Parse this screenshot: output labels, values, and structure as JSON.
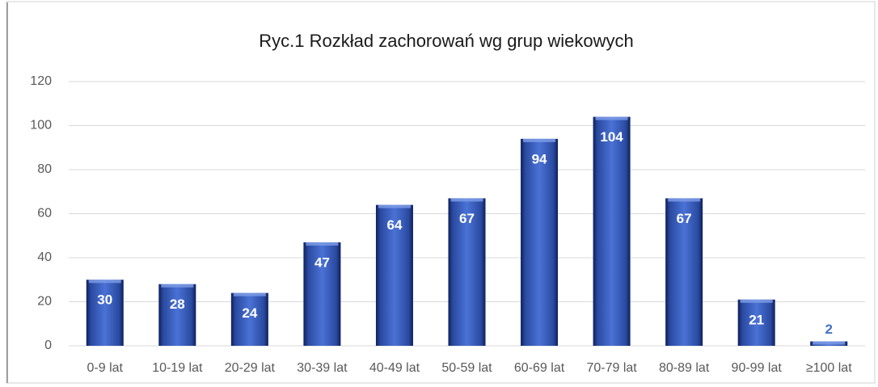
{
  "chart_data": {
    "type": "bar",
    "title": "Ryc.1 Rozkład zachorowań wg grup wiekowych",
    "categories": [
      "0-9 lat",
      "10-19 lat",
      "20-29 lat",
      "30-39 lat",
      "40-49 lat",
      "50-59 lat",
      "60-69 lat",
      "70-79 lat",
      "80-89 lat",
      "90-99 lat",
      "≥100 lat"
    ],
    "values": [
      30,
      28,
      24,
      47,
      64,
      67,
      94,
      104,
      67,
      21,
      2
    ],
    "color": "#2f4fa8",
    "ylim": [
      0,
      120
    ],
    "yticks": [
      0,
      20,
      40,
      60,
      80,
      100,
      120
    ],
    "grid": true
  }
}
